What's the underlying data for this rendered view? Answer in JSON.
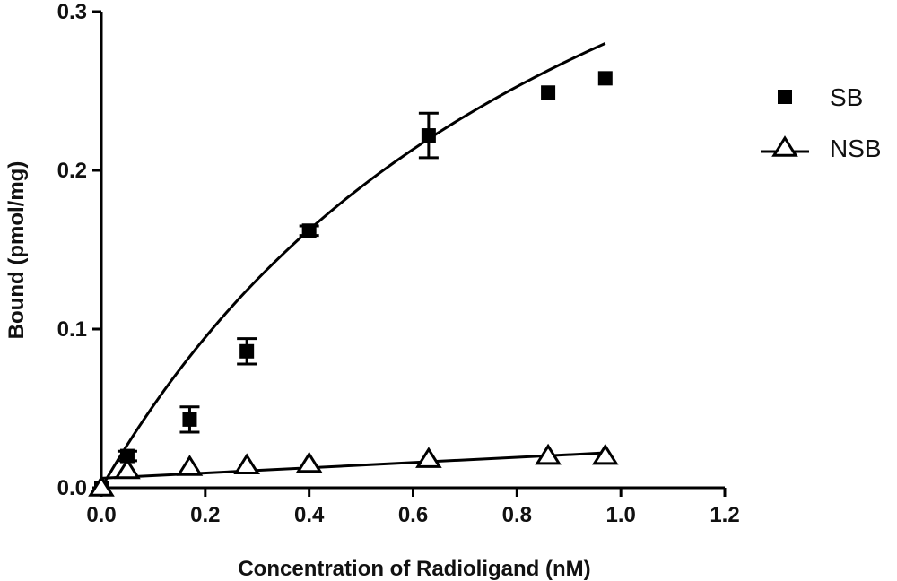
{
  "chart_data": {
    "type": "scatter",
    "xlabel": "Concentration of Radioligand (nM)",
    "ylabel": "Bound (pmol/mg)",
    "xlim": [
      0,
      1.2
    ],
    "ylim": [
      0,
      0.3
    ],
    "x_ticks": [
      "0.0",
      "0.2",
      "0.4",
      "0.6",
      "0.8",
      "1.0",
      "1.2"
    ],
    "y_ticks": [
      "0.0",
      "0.1",
      "0.2",
      "0.3"
    ],
    "grid": false,
    "legend_position": "right",
    "series": [
      {
        "name": "SB",
        "marker": "filled-square",
        "color": "#000000",
        "fit": "one-site saturation",
        "fit_line_in_legend": false,
        "points": [
          {
            "x": 0.0,
            "y": 0.0
          },
          {
            "x": 0.05,
            "y": 0.02,
            "err": 0.003
          },
          {
            "x": 0.17,
            "y": 0.043,
            "err": 0.008
          },
          {
            "x": 0.28,
            "y": 0.086,
            "err": 0.008
          },
          {
            "x": 0.4,
            "y": 0.162,
            "err": 0.003
          },
          {
            "x": 0.63,
            "y": 0.222,
            "err": 0.014
          },
          {
            "x": 0.86,
            "y": 0.249
          },
          {
            "x": 0.97,
            "y": 0.258
          }
        ],
        "fit_curve": {
          "x_max": 0.97,
          "y_at_x_max": 0.28,
          "shape": "hyperbolic"
        }
      },
      {
        "name": "NSB",
        "marker": "open-triangle",
        "color": "#000000",
        "fit": "linear",
        "fit_line_in_legend": true,
        "points": [
          {
            "x": 0.0,
            "y": 0.0
          },
          {
            "x": 0.05,
            "y": 0.011
          },
          {
            "x": 0.17,
            "y": 0.013
          },
          {
            "x": 0.28,
            "y": 0.014
          },
          {
            "x": 0.4,
            "y": 0.015
          },
          {
            "x": 0.63,
            "y": 0.018
          },
          {
            "x": 0.86,
            "y": 0.02
          },
          {
            "x": 0.97,
            "y": 0.02
          }
        ],
        "fit_line": {
          "x_start": 0.0,
          "y_start": 0.006,
          "x_end": 0.97,
          "y_end": 0.022
        }
      }
    ]
  }
}
